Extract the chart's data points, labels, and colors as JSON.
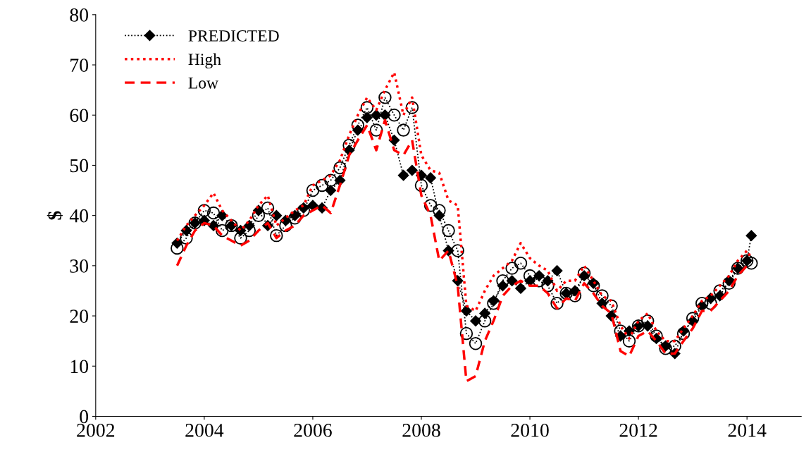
{
  "chart_data": {
    "type": "line",
    "ylabel": "$",
    "x": [
      2003.5,
      2003.67,
      2003.83,
      2004.0,
      2004.17,
      2004.33,
      2004.5,
      2004.67,
      2004.83,
      2005.0,
      2005.17,
      2005.33,
      2005.5,
      2005.67,
      2005.83,
      2006.0,
      2006.17,
      2006.33,
      2006.5,
      2006.67,
      2006.83,
      2007.0,
      2007.17,
      2007.33,
      2007.5,
      2007.67,
      2007.83,
      2008.0,
      2008.17,
      2008.33,
      2008.5,
      2008.67,
      2008.83,
      2009.0,
      2009.17,
      2009.33,
      2009.5,
      2009.67,
      2009.83,
      2010.0,
      2010.17,
      2010.33,
      2010.5,
      2010.67,
      2010.83,
      2011.0,
      2011.17,
      2011.33,
      2011.5,
      2011.67,
      2011.83,
      2012.0,
      2012.17,
      2012.33,
      2012.5,
      2012.67,
      2012.83,
      2013.0,
      2013.17,
      2013.33,
      2013.5,
      2013.67,
      2013.83,
      2014.0,
      2014.08
    ],
    "series": [
      {
        "color": "#000000",
        "marker": "circle",
        "line_style": "dotted",
        "values": [
          33.5,
          35.5,
          38.5,
          41,
          40.5,
          37,
          38,
          35.5,
          37,
          40,
          41.5,
          36,
          38,
          39.5,
          41,
          45,
          46,
          47,
          49.5,
          54,
          58,
          61.5,
          57,
          63.5,
          60,
          57,
          61.5,
          46,
          42,
          41,
          37,
          33,
          16.5,
          14.5,
          19,
          22.5,
          27,
          29.5,
          30.5,
          28,
          27,
          26,
          22.5,
          24.5,
          24,
          28.5,
          26,
          24,
          22,
          17,
          15,
          18,
          19,
          16,
          13.5,
          14,
          16.5,
          19.5,
          22.5,
          22.5,
          25,
          26.5,
          29.5,
          31,
          30.5
        ]
      },
      {
        "name": "PREDICTED",
        "color": "#000000",
        "marker": "diamond",
        "line_style": "dotted",
        "values": [
          34.5,
          37,
          38.5,
          39,
          38,
          40,
          38,
          37,
          38,
          41,
          38,
          40,
          39,
          40,
          41.5,
          42,
          41.5,
          45,
          47,
          53,
          57,
          59.5,
          60,
          60,
          55,
          48,
          49,
          48,
          47.5,
          40,
          33,
          27,
          21,
          19,
          20.5,
          23,
          26,
          27,
          25.5,
          27,
          28,
          27,
          29,
          24.5,
          25,
          28,
          26.5,
          22.5,
          20,
          16,
          17,
          18,
          18,
          15.5,
          14,
          12.5,
          17,
          19,
          22,
          23.5,
          24,
          27,
          29.5,
          31,
          36
        ]
      },
      {
        "name": "High",
        "color": "#ff0000",
        "marker": "none",
        "line_style": "dotted",
        "values": [
          35,
          38,
          40,
          42,
          44.5,
          41,
          39,
          37,
          39,
          42,
          44,
          38,
          39.5,
          41,
          42,
          46,
          47,
          48,
          51,
          56,
          60,
          63.5,
          61,
          65,
          68.5,
          60,
          63.5,
          52,
          49,
          48.5,
          43,
          42,
          22,
          21,
          25,
          28,
          29.5,
          31,
          34.5,
          31.5,
          30,
          29,
          25,
          27,
          27,
          30,
          27,
          24,
          23,
          18,
          15.5,
          19,
          20.5,
          17,
          15,
          15,
          17.5,
          20,
          23,
          24,
          26,
          28,
          31,
          33,
          31.5
        ]
      },
      {
        "name": "Low",
        "color": "#ff0000",
        "marker": "none",
        "line_style": "dashed",
        "values": [
          30,
          34,
          37,
          38.5,
          38,
          36,
          35,
          34,
          35,
          37,
          38.5,
          35.5,
          37,
          38,
          40,
          41,
          42,
          40.5,
          46,
          52,
          55,
          58,
          53,
          59,
          53,
          52,
          55,
          44,
          40,
          31,
          33,
          26,
          7,
          8,
          15,
          19,
          24,
          26,
          27,
          26,
          26,
          24.5,
          21.5,
          23.5,
          23,
          26.5,
          24.5,
          22,
          20.5,
          13,
          12,
          16,
          17,
          15,
          12.5,
          12.5,
          15,
          17.5,
          21,
          21,
          23,
          25,
          28,
          30,
          29.5
        ]
      }
    ],
    "xlim": [
      2002,
      2015
    ],
    "xticks": [
      2002,
      2004,
      2006,
      2008,
      2010,
      2012,
      2014
    ],
    "ylim": [
      0,
      80
    ],
    "yticks": [
      0,
      10,
      20,
      30,
      40,
      50,
      60,
      70,
      80
    ],
    "grid": false,
    "legend": "top left"
  }
}
